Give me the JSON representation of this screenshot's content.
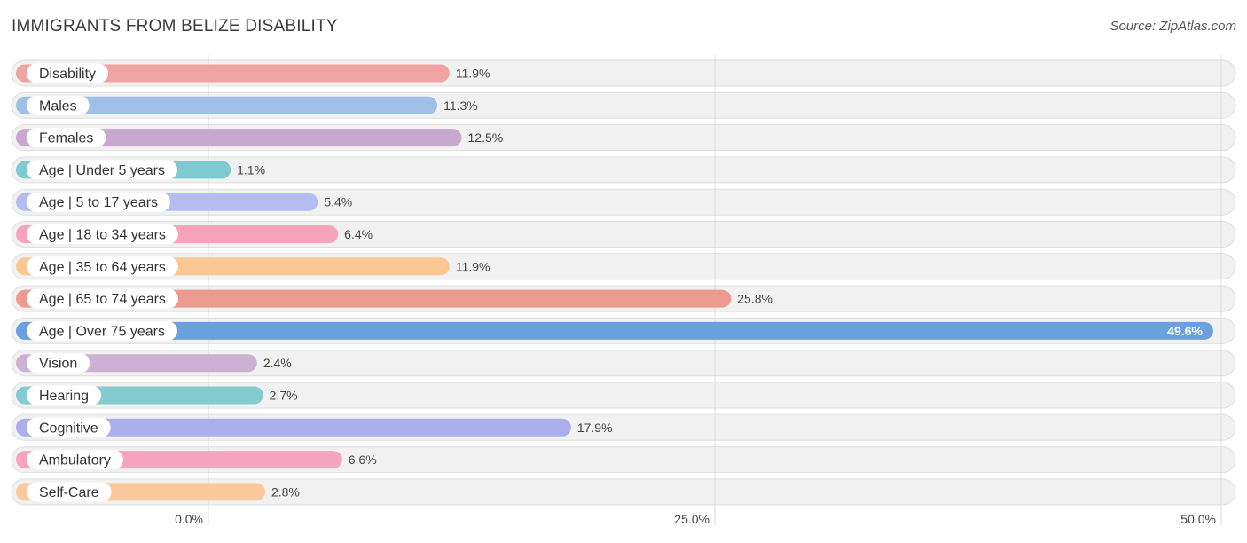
{
  "chart_data": {
    "type": "bar",
    "orientation": "horizontal",
    "title": "IMMIGRANTS FROM BELIZE DISABILITY",
    "source": "Source: ZipAtlas.com",
    "categories": [
      "Disability",
      "Males",
      "Females",
      "Age | Under 5 years",
      "Age | 5 to 17 years",
      "Age | 18 to 34 years",
      "Age | 35 to 64 years",
      "Age | 65 to 74 years",
      "Age | Over 75 years",
      "Vision",
      "Hearing",
      "Cognitive",
      "Ambulatory",
      "Self-Care"
    ],
    "values": [
      11.9,
      11.3,
      12.5,
      1.1,
      5.4,
      6.4,
      11.9,
      25.8,
      49.6,
      2.4,
      2.7,
      17.9,
      6.6,
      2.8
    ],
    "value_labels": [
      "11.9%",
      "11.3%",
      "12.5%",
      "1.1%",
      "5.4%",
      "6.4%",
      "11.9%",
      "25.8%",
      "49.6%",
      "2.4%",
      "2.7%",
      "17.9%",
      "6.6%",
      "2.8%"
    ],
    "colors": [
      "#f0a3a3",
      "#9dbfe8",
      "#c9a8cf",
      "#7fcad0",
      "#b5bdf0",
      "#f7a3bd",
      "#fbc792",
      "#ec9a8f",
      "#6aa0dd",
      "#cdb1d4",
      "#84cbd1",
      "#a9afea",
      "#f6a3bf",
      "#fbc99b"
    ],
    "xlim": [
      0,
      50
    ],
    "xticks": [
      0,
      25,
      50
    ],
    "xtick_labels": [
      "0.0%",
      "25.0%",
      "50.0%"
    ],
    "grid": true
  }
}
